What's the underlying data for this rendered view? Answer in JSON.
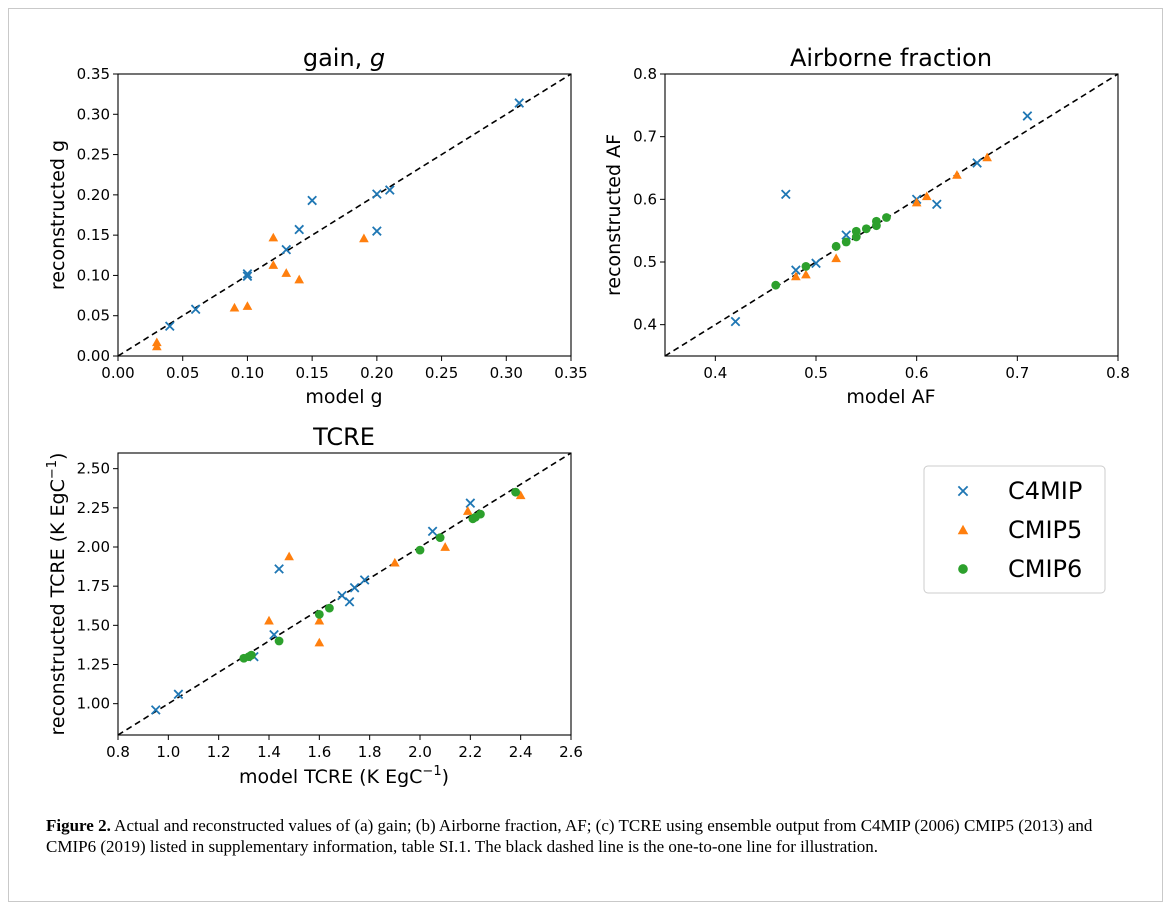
{
  "colors": {
    "C4MIP": "#1f77b4",
    "CMIP5": "#ff7f0e",
    "CMIP6": "#2ca02c",
    "reference_line": "#000000"
  },
  "chart_data": [
    {
      "type": "scatter",
      "title_main": "gain, ",
      "title_italic": "g",
      "xlabel": "model g",
      "ylabel": "reconstructed g",
      "xlim": [
        0.0,
        0.35
      ],
      "ylim": [
        0.0,
        0.35
      ],
      "xticks": [
        "0.00",
        "0.05",
        "0.10",
        "0.15",
        "0.20",
        "0.25",
        "0.30",
        "0.35"
      ],
      "yticks": [
        "0.00",
        "0.05",
        "0.10",
        "0.15",
        "0.20",
        "0.25",
        "0.30",
        "0.35"
      ],
      "one_to_one_line": true,
      "series": [
        {
          "name": "C4MIP",
          "marker": "x",
          "points": [
            [
              0.04,
              0.037
            ],
            [
              0.06,
              0.058
            ],
            [
              0.1,
              0.102
            ],
            [
              0.1,
              0.099
            ],
            [
              0.13,
              0.132
            ],
            [
              0.14,
              0.157
            ],
            [
              0.15,
              0.193
            ],
            [
              0.2,
              0.201
            ],
            [
              0.2,
              0.155
            ],
            [
              0.21,
              0.206
            ],
            [
              0.31,
              0.314
            ]
          ]
        },
        {
          "name": "CMIP5",
          "marker": "triangle",
          "points": [
            [
              0.03,
              0.017
            ],
            [
              0.03,
              0.012
            ],
            [
              0.09,
              0.06
            ],
            [
              0.1,
              0.062
            ],
            [
              0.12,
              0.147
            ],
            [
              0.12,
              0.113
            ],
            [
              0.13,
              0.103
            ],
            [
              0.14,
              0.095
            ],
            [
              0.19,
              0.146
            ]
          ]
        }
      ]
    },
    {
      "type": "scatter",
      "title_main": "Airborne fraction",
      "title_italic": "",
      "xlabel": "model AF",
      "ylabel": "reconstructed AF",
      "xlim": [
        0.35,
        0.8
      ],
      "ylim": [
        0.35,
        0.8
      ],
      "xticks": [
        "0.4",
        "0.5",
        "0.6",
        "0.7",
        "0.8"
      ],
      "yticks": [
        "0.4",
        "0.5",
        "0.6",
        "0.7",
        "0.8"
      ],
      "one_to_one_line": true,
      "series": [
        {
          "name": "C4MIP",
          "marker": "x",
          "points": [
            [
              0.42,
              0.405
            ],
            [
              0.47,
              0.608
            ],
            [
              0.48,
              0.487
            ],
            [
              0.5,
              0.498
            ],
            [
              0.53,
              0.543
            ],
            [
              0.6,
              0.6
            ],
            [
              0.62,
              0.592
            ],
            [
              0.66,
              0.658
            ],
            [
              0.71,
              0.733
            ]
          ]
        },
        {
          "name": "CMIP5",
          "marker": "triangle",
          "points": [
            [
              0.48,
              0.477
            ],
            [
              0.49,
              0.48
            ],
            [
              0.52,
              0.506
            ],
            [
              0.6,
              0.595
            ],
            [
              0.61,
              0.605
            ],
            [
              0.64,
              0.639
            ],
            [
              0.67,
              0.667
            ]
          ]
        },
        {
          "name": "CMIP6",
          "marker": "circle",
          "points": [
            [
              0.46,
              0.463
            ],
            [
              0.49,
              0.493
            ],
            [
              0.52,
              0.525
            ],
            [
              0.53,
              0.532
            ],
            [
              0.54,
              0.54
            ],
            [
              0.54,
              0.549
            ],
            [
              0.55,
              0.553
            ],
            [
              0.56,
              0.558
            ],
            [
              0.56,
              0.565
            ],
            [
              0.57,
              0.571
            ]
          ]
        }
      ]
    },
    {
      "type": "scatter",
      "title_main": "TCRE",
      "title_italic": "",
      "xlabel_main": "model TCRE (K EgC",
      "xlabel_sup": "−1",
      "xlabel_end": ")",
      "ylabel_main": "reconstructed TCRE (K EgC",
      "ylabel_sup": "−1",
      "ylabel_end": ")",
      "xlim": [
        0.8,
        2.6
      ],
      "ylim": [
        0.8,
        2.6
      ],
      "xticks": [
        "0.8",
        "1.0",
        "1.2",
        "1.4",
        "1.6",
        "1.8",
        "2.0",
        "2.2",
        "2.4",
        "2.6"
      ],
      "yticks": [
        "1.00",
        "1.25",
        "1.50",
        "1.75",
        "2.00",
        "2.25",
        "2.50"
      ],
      "one_to_one_line": true,
      "series": [
        {
          "name": "C4MIP",
          "marker": "x",
          "points": [
            [
              0.95,
              0.96
            ],
            [
              1.04,
              1.06
            ],
            [
              1.34,
              1.3
            ],
            [
              1.42,
              1.44
            ],
            [
              1.44,
              1.86
            ],
            [
              1.69,
              1.69
            ],
            [
              1.72,
              1.65
            ],
            [
              1.74,
              1.74
            ],
            [
              1.78,
              1.79
            ],
            [
              2.05,
              2.1
            ],
            [
              2.2,
              2.28
            ]
          ]
        },
        {
          "name": "CMIP5",
          "marker": "triangle",
          "points": [
            [
              1.4,
              1.53
            ],
            [
              1.48,
              1.94
            ],
            [
              1.6,
              1.53
            ],
            [
              1.6,
              1.39
            ],
            [
              1.9,
              1.9
            ],
            [
              2.1,
              2.0
            ],
            [
              2.19,
              2.23
            ],
            [
              2.4,
              2.33
            ]
          ]
        },
        {
          "name": "CMIP6",
          "marker": "circle",
          "points": [
            [
              1.3,
              1.29
            ],
            [
              1.32,
              1.3
            ],
            [
              1.33,
              1.31
            ],
            [
              1.44,
              1.4
            ],
            [
              1.6,
              1.57
            ],
            [
              1.64,
              1.61
            ],
            [
              2.0,
              1.98
            ],
            [
              2.08,
              2.06
            ],
            [
              2.21,
              2.18
            ],
            [
              2.22,
              2.19
            ],
            [
              2.24,
              2.21
            ],
            [
              2.38,
              2.35
            ]
          ]
        }
      ]
    }
  ],
  "legend": {
    "items": [
      {
        "label": "C4MIP",
        "marker": "x"
      },
      {
        "label": "CMIP5",
        "marker": "triangle"
      },
      {
        "label": "CMIP6",
        "marker": "circle"
      }
    ]
  },
  "caption": {
    "label": "Figure 2.",
    "text": " Actual and reconstructed values of (a) gain; (b) Airborne fraction, AF; (c) TCRE using ensemble output from C4MIP (2006) CMIP5 (2013) and CMIP6 (2019) listed in supplementary information, table SI.1. The black dashed line is the one-to-one line for illustration."
  }
}
